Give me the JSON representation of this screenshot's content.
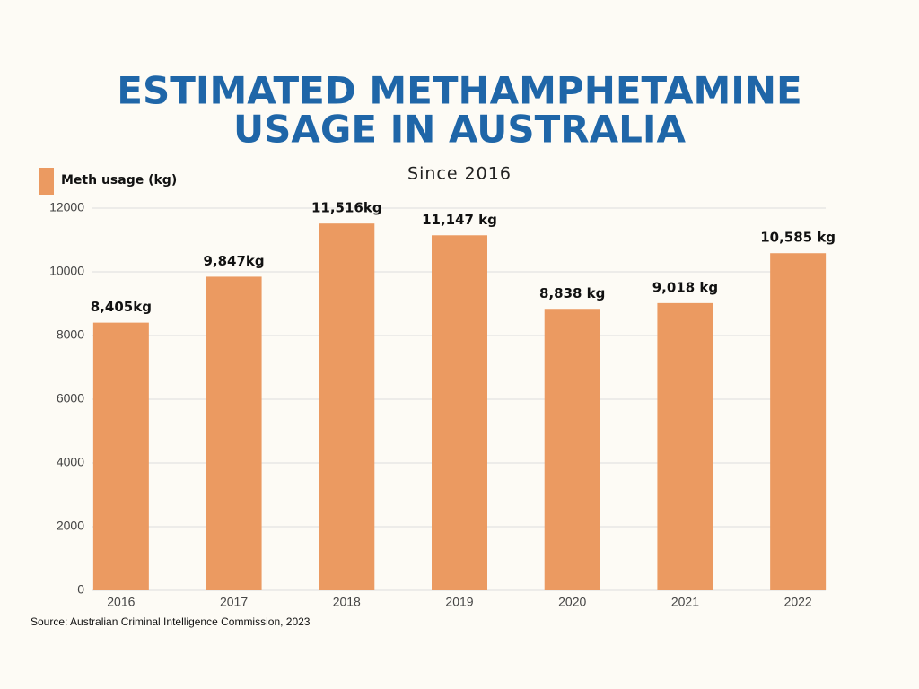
{
  "chart_data": {
    "type": "bar",
    "title": [
      "ESTIMATED METHAMPHETAMINE",
      "USAGE IN AUSTRALIA"
    ],
    "subtitle": "Since 2016",
    "source": "Source: Australian Criminal Intelligence Commission, 2023",
    "categories": [
      "2016",
      "2017",
      "2018",
      "2019",
      "2020",
      "2021",
      "2022"
    ],
    "series": [
      {
        "name": "Meth usage (kg)",
        "color": "#eb9a61",
        "values": [
          8405,
          9847,
          11516,
          11147,
          8838,
          9018,
          10585
        ],
        "value_labels": [
          "8,405kg",
          "9,847kg",
          "11,516kg",
          "11,147 kg",
          "8,838 kg",
          "9,018 kg",
          "10,585 kg"
        ]
      }
    ],
    "ylim": [
      0,
      12000
    ],
    "yticks": [
      0,
      2000,
      4000,
      6000,
      8000,
      10000,
      12000
    ],
    "grid": true,
    "legend": "top-left"
  }
}
